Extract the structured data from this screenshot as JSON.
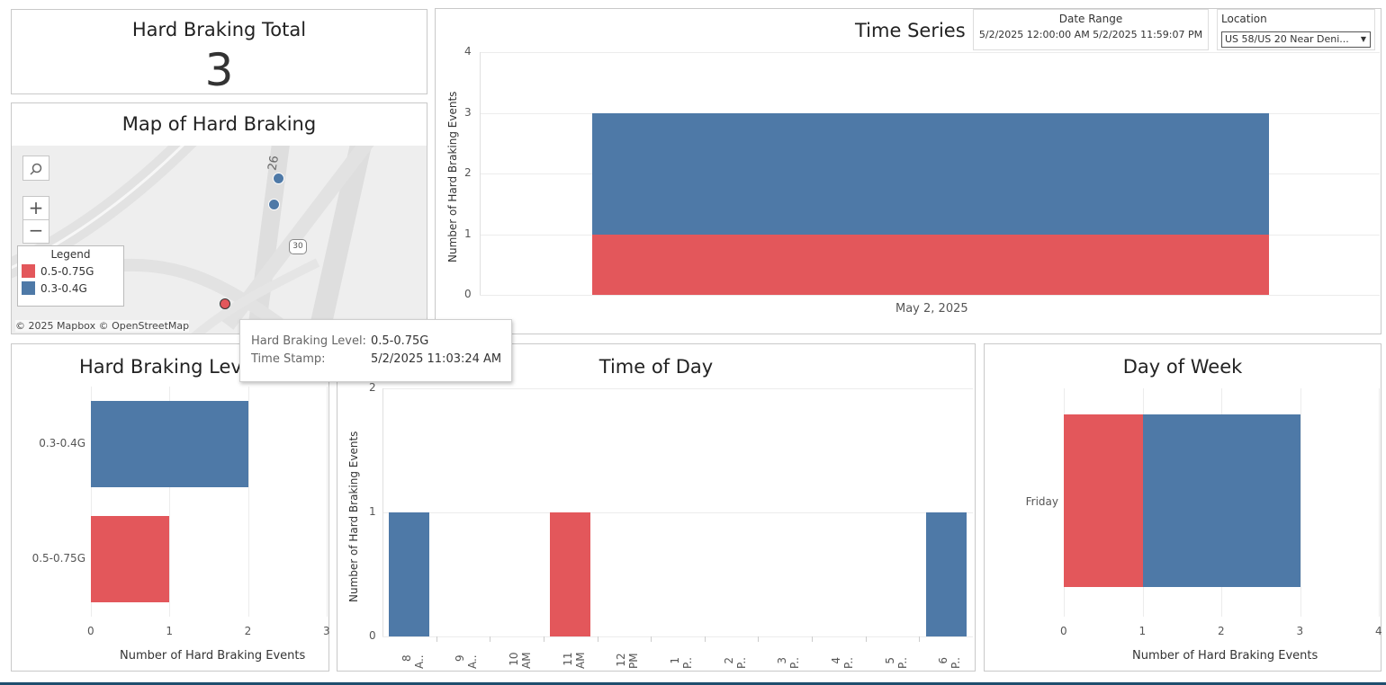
{
  "colors": {
    "red": "#e3575b",
    "blue": "#4e79a7"
  },
  "total": {
    "title": "Hard Braking Total",
    "value": "3"
  },
  "map": {
    "title": "Map of Hard Braking",
    "route_labels": [
      "26",
      "30"
    ],
    "legend_title": "Legend",
    "legend": [
      {
        "label": "0.5-0.75G",
        "color": "#e3575b"
      },
      {
        "label": "0.3-0.4G",
        "color": "#4e79a7"
      }
    ],
    "attribution": "© 2025 Mapbox © OpenStreetMap",
    "zoom_in": "+",
    "zoom_out": "−"
  },
  "time_series": {
    "title": "Time Series",
    "date_range": {
      "label": "Date Range",
      "value": "5/2/2025 12:00:00 AM 5/2/2025 11:59:07 PM"
    },
    "location": {
      "label": "Location",
      "value": "US 58/US 20 Near Deni..."
    }
  },
  "tooltip": {
    "rows": [
      {
        "key": "Hard Braking Level:",
        "value": "0.5-0.75G"
      },
      {
        "key": "Time Stamp:",
        "value": "5/2/2025 11:03:24 AM"
      }
    ]
  },
  "chart_data": [
    {
      "type": "bar",
      "title": "Time Series",
      "ylabel": "Number of Hard Braking Events",
      "categories": [
        "May 2, 2025"
      ],
      "stacked": true,
      "series": [
        {
          "name": "0.5-0.75G",
          "values": [
            1
          ]
        },
        {
          "name": "0.3-0.4G",
          "values": [
            2
          ]
        }
      ],
      "ylim": [
        0,
        4
      ],
      "yticks": [
        0,
        1,
        2,
        3,
        4
      ]
    },
    {
      "type": "bar",
      "title": "Hard Braking Level",
      "orientation": "horizontal",
      "xlabel": "Number of Hard Braking Events",
      "categories": [
        "0.3-0.4G",
        "0.5-0.75G"
      ],
      "values": [
        2,
        1
      ],
      "xlim": [
        0,
        3
      ],
      "xticks": [
        0,
        1,
        2,
        3
      ]
    },
    {
      "type": "bar",
      "title": "Time of Day",
      "ylabel": "Number of Hard Braking Events",
      "categories": [
        "8 A..",
        "9 A..",
        "10 AM",
        "11 AM",
        "12 PM",
        "1 P..",
        "2 P..",
        "3 P..",
        "4 P..",
        "5 P..",
        "6 P.."
      ],
      "series": [
        {
          "name": "0.3-0.4G",
          "values": [
            1,
            0,
            0,
            0,
            0,
            0,
            0,
            0,
            0,
            0,
            1
          ]
        },
        {
          "name": "0.5-0.75G",
          "values": [
            0,
            0,
            0,
            1,
            0,
            0,
            0,
            0,
            0,
            0,
            0
          ]
        }
      ],
      "ylim": [
        0,
        2
      ],
      "yticks": [
        0,
        1,
        2
      ]
    },
    {
      "type": "bar",
      "title": "Day of Week",
      "orientation": "horizontal",
      "stacked": true,
      "xlabel": "Number of Hard Braking Events",
      "categories": [
        "Friday"
      ],
      "series": [
        {
          "name": "0.5-0.75G",
          "values": [
            1
          ]
        },
        {
          "name": "0.3-0.4G",
          "values": [
            2
          ]
        }
      ],
      "xlim": [
        0,
        4
      ],
      "xticks": [
        0,
        1,
        2,
        3,
        4
      ]
    }
  ]
}
